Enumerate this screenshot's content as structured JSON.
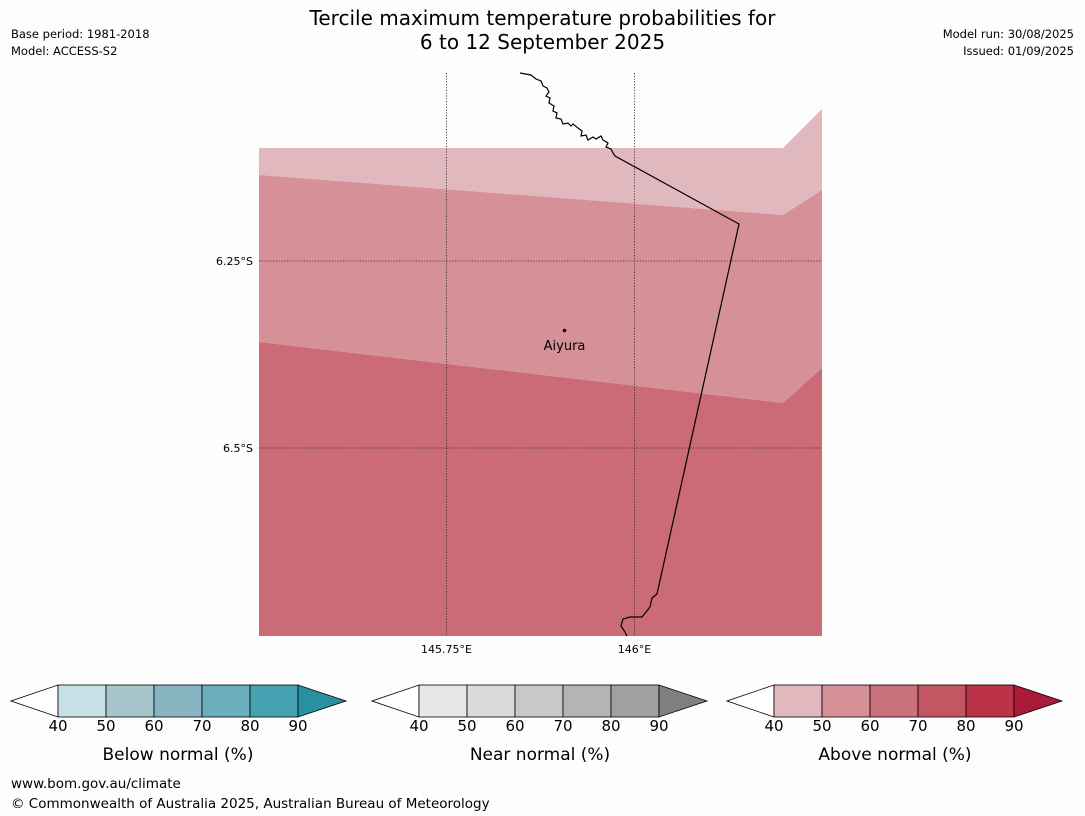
{
  "header": {
    "title_line1": "Tercile maximum temperature probabilities for",
    "title_line2": "6 to 12 September 2025",
    "base_period": "Base period: 1981-2018",
    "model": "Model: ACCESS-S2",
    "model_run": "Model run: 30/08/2025",
    "issued": "Issued: 01/09/2025"
  },
  "map": {
    "lat_labels": [
      "6.25°S",
      "6.5°S"
    ],
    "lon_labels": [
      "145.75°E",
      "146°E"
    ],
    "place": "Aiyura",
    "probability_bands": [
      {
        "category": "Above normal",
        "range": "40-50",
        "color": "#e0b8bd"
      },
      {
        "category": "Above normal",
        "range": "50-60",
        "color": "#d69097"
      },
      {
        "category": "Above normal",
        "range": "60-70",
        "color": "#ca6b76"
      }
    ]
  },
  "legends": [
    {
      "caption": "Below normal (%)",
      "colors": [
        "#c6e0e5",
        "#a6c6cc",
        "#89b5c2",
        "#6baebc",
        "#46a2b0",
        "#2a90a0"
      ]
    },
    {
      "caption": "Near normal (%)",
      "colors": [
        "#e6e6e6",
        "#d9d9d9",
        "#c8c8c8",
        "#b4b4b4",
        "#a0a0a0",
        "#808080"
      ]
    },
    {
      "caption": "Above normal (%)",
      "colors": [
        "#e0b8bd",
        "#d69097",
        "#ca727c",
        "#c25663",
        "#bc3248",
        "#ab1b39"
      ]
    }
  ],
  "legend_ticks": [
    "40",
    "50",
    "60",
    "70",
    "80",
    "90"
  ],
  "footer": {
    "website": "www.bom.gov.au/climate",
    "copyright": "© Commonwealth of Australia 2025, Australian Bureau of Meteorology"
  }
}
